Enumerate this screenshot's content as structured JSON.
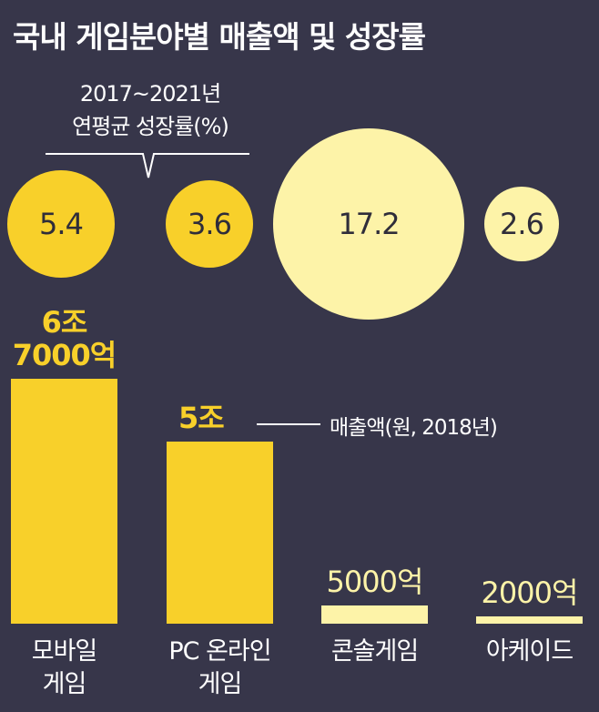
{
  "chart_data": {
    "type": "bar",
    "title": "국내 게임분야별 매출액 및 성장률",
    "categories": [
      "모바일 게임",
      "PC 온라인 게임",
      "콘솔게임",
      "아케이드"
    ],
    "category_lines": [
      [
        "모바일",
        "게임"
      ],
      [
        "PC 온라인",
        "게임"
      ],
      [
        "콘솔게임"
      ],
      [
        "아케이드"
      ]
    ],
    "series": [
      {
        "name": "매출액(원, 2018년)",
        "values_eok": [
          67000,
          50000,
          5000,
          2000
        ],
        "labels": [
          [
            "6조",
            "7000억"
          ],
          [
            "5조"
          ],
          [
            "5000억"
          ],
          [
            "2000억"
          ]
        ]
      },
      {
        "name": "2017~2021년 연평균 성장률(%)",
        "type": "bubble",
        "values": [
          5.4,
          3.6,
          17.2,
          2.6
        ],
        "labels": [
          "5.4",
          "3.6",
          "17.2",
          "2.6"
        ]
      }
    ],
    "growth_note": [
      "2017~2021년",
      "연평균 성장률(%)"
    ],
    "sales_legend": "매출액(원, 2018년)",
    "colors": {
      "background": "#37364a",
      "strong": "#f8d02a",
      "light": "#fdf3a8",
      "text": "#ffffff"
    }
  }
}
